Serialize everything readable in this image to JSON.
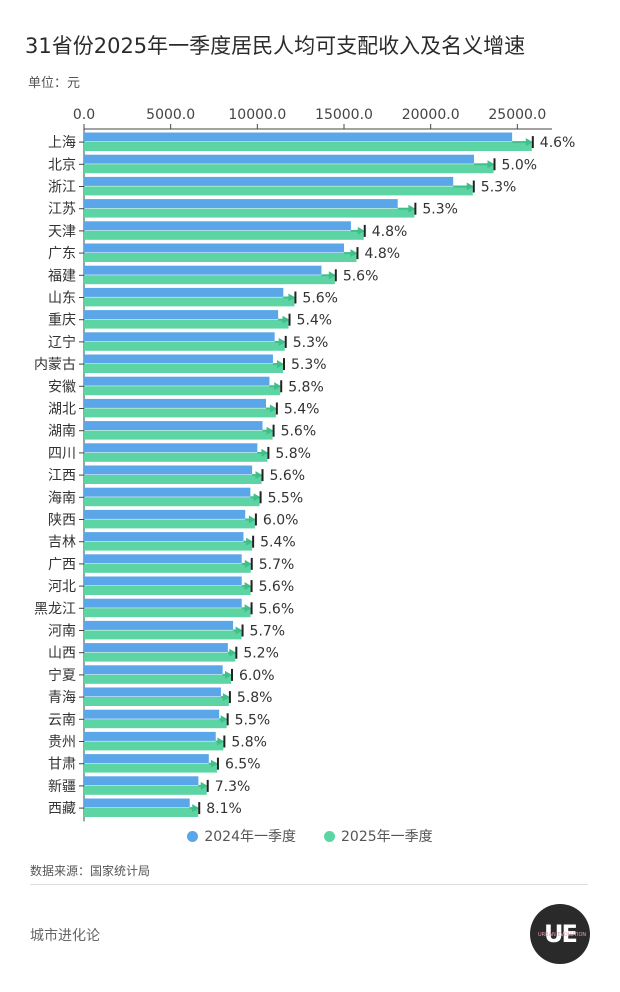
{
  "header": {
    "title": "31省份2025年一季度居民人均可支配收入及名义增速",
    "unit": "单位：元"
  },
  "colors": {
    "series_2024": "#5aa6e8",
    "series_2025": "#5dd4a4",
    "arrow": "#3fbf8a",
    "error_bar": "#222222",
    "axis": "#444444",
    "text": "#333333"
  },
  "chart_data": {
    "type": "bar",
    "orientation": "horizontal",
    "title": "31省份2025年一季度居民人均可支配收入及名义增速",
    "ylabel": "单位：元",
    "xlim": [
      0,
      27000
    ],
    "x_ticks": [
      0,
      5000,
      10000,
      15000,
      20000,
      25000
    ],
    "x_tick_labels": [
      "0.0",
      "5000.0",
      "10000.0",
      "15000.0",
      "20000.0",
      "25000.0"
    ],
    "categories": [
      "上海",
      "北京",
      "浙江",
      "江苏",
      "天津",
      "广东",
      "福建",
      "山东",
      "重庆",
      "辽宁",
      "内蒙古",
      "安徽",
      "湖北",
      "湖南",
      "四川",
      "江西",
      "海南",
      "陕西",
      "吉林",
      "广西",
      "河北",
      "黑龙江",
      "河南",
      "山西",
      "宁夏",
      "青海",
      "云南",
      "贵州",
      "甘肃",
      "新疆",
      "西藏"
    ],
    "series": [
      {
        "name": "2024年一季度",
        "values": [
          24700,
          22500,
          21300,
          18100,
          15400,
          15000,
          13700,
          11500,
          11200,
          11000,
          10900,
          10700,
          10500,
          10300,
          10000,
          9700,
          9600,
          9300,
          9200,
          9100,
          9100,
          9100,
          8600,
          8300,
          8000,
          7900,
          7800,
          7600,
          7200,
          6600,
          6100
        ]
      },
      {
        "name": "2025年一季度",
        "values": [
          25835,
          23625,
          22430,
          19060,
          16140,
          15720,
          14470,
          12140,
          11800,
          11580,
          11480,
          11320,
          11070,
          10880,
          10580,
          10240,
          10130,
          9860,
          9700,
          9620,
          9610,
          9610,
          9090,
          8730,
          8480,
          8360,
          8230,
          8040,
          7670,
          7080,
          6590
        ]
      }
    ],
    "growth_labels": [
      "4.6%",
      "5.0%",
      "5.3%",
      "5.3%",
      "4.8%",
      "4.8%",
      "5.6%",
      "5.6%",
      "5.4%",
      "5.3%",
      "5.3%",
      "5.8%",
      "5.4%",
      "5.6%",
      "5.8%",
      "5.6%",
      "5.5%",
      "6.0%",
      "5.4%",
      "5.7%",
      "5.6%",
      "5.6%",
      "5.7%",
      "5.2%",
      "6.0%",
      "5.8%",
      "5.5%",
      "5.8%",
      "6.5%",
      "7.3%",
      "8.1%"
    ],
    "legend_position": "bottom"
  },
  "legend": {
    "items": [
      {
        "label": "2024年一季度"
      },
      {
        "label": "2025年一季度"
      }
    ]
  },
  "footer": {
    "source": "数据来源：国家统计局",
    "brand": "城市进化论",
    "logo_text": "UE",
    "logo_subtext": "URBAN EVOLUTION"
  }
}
